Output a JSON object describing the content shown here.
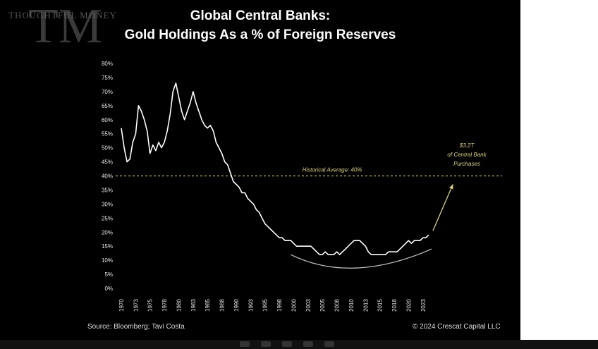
{
  "header": {
    "title_line1": "Global Central Banks:",
    "title_line2": "Gold Holdings As a % of Foreign Reserves",
    "watermark_text": "THOUGHTFUL MONEY"
  },
  "footer": {
    "source": "Source: Bloomberg; Tavi Costa",
    "copyright": "© 2024 Crescat Capital LLC"
  },
  "chart_data": {
    "type": "line",
    "title": "Global Central Banks: Gold Holdings As a % of Foreign Reserves",
    "xlabel": "",
    "ylabel": "",
    "ylim": [
      0,
      80
    ],
    "xlim": [
      1970,
      2024
    ],
    "y_ticks": [
      "0%",
      "5%",
      "10%",
      "15%",
      "20%",
      "25%",
      "30%",
      "35%",
      "40%",
      "45%",
      "50%",
      "55%",
      "60%",
      "65%",
      "70%",
      "75%",
      "80%"
    ],
    "y_tick_values": [
      0,
      5,
      10,
      15,
      20,
      25,
      30,
      35,
      40,
      45,
      50,
      55,
      60,
      65,
      70,
      75,
      80
    ],
    "x_ticks": [
      "1970",
      "1973",
      "1975",
      "1978",
      "1980",
      "1983",
      "1985",
      "1988",
      "1990",
      "1993",
      "1995",
      "1998",
      "2000",
      "2003",
      "2005",
      "2008",
      "2010",
      "2013",
      "2015",
      "2018",
      "2020",
      "2023"
    ],
    "x_tick_values": [
      1970,
      1972.5,
      1975,
      1977.5,
      1980,
      1982.5,
      1985,
      1987.5,
      1990,
      1992.5,
      1995,
      1997.5,
      2000,
      2002.5,
      2005,
      2007.5,
      2010,
      2012.5,
      2015,
      2017.5,
      2020,
      2022.5
    ],
    "grid": false,
    "legend": "none",
    "series": [
      {
        "values": [
          [
            1970,
            57
          ],
          [
            1970.5,
            50
          ],
          [
            1971,
            45
          ],
          [
            1971.5,
            46
          ],
          [
            1972,
            52
          ],
          [
            1972.5,
            55
          ],
          [
            1973,
            65
          ],
          [
            1973.5,
            63
          ],
          [
            1974,
            60
          ],
          [
            1974.5,
            56
          ],
          [
            1975,
            48
          ],
          [
            1975.5,
            51
          ],
          [
            1976,
            49
          ],
          [
            1976.5,
            52
          ],
          [
            1977,
            50
          ],
          [
            1977.5,
            52
          ],
          [
            1978,
            56
          ],
          [
            1978.5,
            62
          ],
          [
            1979,
            70
          ],
          [
            1979.5,
            73
          ],
          [
            1980,
            68
          ],
          [
            1980.5,
            63
          ],
          [
            1981,
            60
          ],
          [
            1981.5,
            63
          ],
          [
            1982,
            66
          ],
          [
            1982.5,
            70
          ],
          [
            1983,
            66
          ],
          [
            1983.5,
            63
          ],
          [
            1984,
            60
          ],
          [
            1984.5,
            58
          ],
          [
            1985,
            57
          ],
          [
            1985.5,
            58
          ],
          [
            1986,
            56
          ],
          [
            1986.5,
            52
          ],
          [
            1987,
            50
          ],
          [
            1987.5,
            48
          ],
          [
            1988,
            45
          ],
          [
            1988.5,
            44
          ],
          [
            1989,
            41
          ],
          [
            1989.5,
            38
          ],
          [
            1990,
            37
          ],
          [
            1990.5,
            36
          ],
          [
            1991,
            34
          ],
          [
            1991.5,
            34
          ],
          [
            1992,
            32
          ],
          [
            1992.5,
            31
          ],
          [
            1993,
            30
          ],
          [
            1993.5,
            28
          ],
          [
            1994,
            27
          ],
          [
            1994.5,
            25
          ],
          [
            1995,
            23
          ],
          [
            1995.5,
            22
          ],
          [
            1996,
            21
          ],
          [
            1996.5,
            20
          ],
          [
            1997,
            19
          ],
          [
            1997.5,
            18
          ],
          [
            1998,
            18
          ],
          [
            1998.5,
            17
          ],
          [
            1999,
            17
          ],
          [
            1999.5,
            17
          ],
          [
            2000,
            16
          ],
          [
            2000.5,
            15
          ],
          [
            2001,
            15
          ],
          [
            2001.5,
            15
          ],
          [
            2002,
            15
          ],
          [
            2002.5,
            15
          ],
          [
            2003,
            15
          ],
          [
            2003.5,
            14
          ],
          [
            2004,
            13
          ],
          [
            2004.5,
            12
          ],
          [
            2005,
            12
          ],
          [
            2005.5,
            13
          ],
          [
            2006,
            12
          ],
          [
            2006.5,
            12
          ],
          [
            2007,
            12
          ],
          [
            2007.5,
            13
          ],
          [
            2008,
            12
          ],
          [
            2008.5,
            13
          ],
          [
            2009,
            14
          ],
          [
            2009.5,
            15
          ],
          [
            2010,
            16
          ],
          [
            2010.5,
            17
          ],
          [
            2011,
            17
          ],
          [
            2011.5,
            17
          ],
          [
            2012,
            16
          ],
          [
            2012.5,
            15
          ],
          [
            2013,
            13
          ],
          [
            2013.5,
            12
          ],
          [
            2014,
            12
          ],
          [
            2014.5,
            12
          ],
          [
            2015,
            12
          ],
          [
            2015.5,
            12
          ],
          [
            2016,
            12
          ],
          [
            2016.5,
            13
          ],
          [
            2017,
            13
          ],
          [
            2017.5,
            13
          ],
          [
            2018,
            13
          ],
          [
            2018.5,
            14
          ],
          [
            2019,
            15
          ],
          [
            2019.5,
            16
          ],
          [
            2020,
            17
          ],
          [
            2020.5,
            16
          ],
          [
            2021,
            17
          ],
          [
            2021.5,
            17
          ],
          [
            2022,
            17
          ],
          [
            2022.5,
            18
          ],
          [
            2023,
            18
          ],
          [
            2023.5,
            19
          ]
        ]
      }
    ],
    "reference_line": {
      "value": 40,
      "label": "Historical Average: 40%",
      "color": "#c7b85c"
    },
    "annotation": {
      "lines": [
        "$3.2T",
        "of Central Bank",
        "Purchases"
      ],
      "arrow_from": [
        2023.5,
        20
      ],
      "arrow_to": [
        2026,
        37
      ],
      "color": "#d8cf88"
    },
    "trend_arc": {
      "from": [
        1999.5,
        12
      ],
      "mid": [
        2010,
        5.5
      ],
      "to": [
        2024,
        14
      ],
      "color": "#bfbfbf"
    },
    "colors": {
      "line": "#ffffff",
      "axis_text": "#e8e8e8",
      "background": "#000000"
    }
  }
}
